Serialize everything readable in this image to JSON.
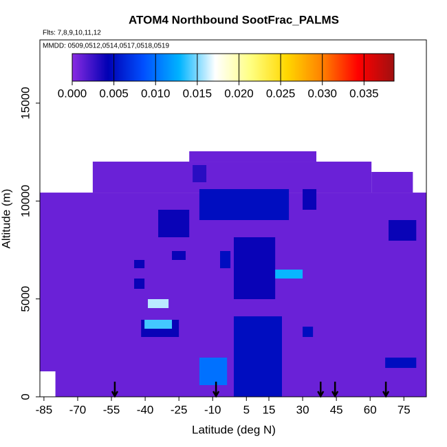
{
  "chart_data": {
    "type": "heatmap",
    "title": "ATOM4 Northbound SootFrac_PALMS",
    "flights_note": "Flts: 7,8,9,10,11,12",
    "dates_note": "MMDD: 0509,0512,0514,0517,0518,0519",
    "x_label": "Latitude (deg N)",
    "y_label": "Altitude (m)",
    "xlim": [
      -86.8,
      85
    ],
    "ylim": [
      0,
      18230
    ],
    "xticks": [
      -85,
      -70,
      -55,
      -40,
      -25,
      -10,
      5,
      15,
      30,
      45,
      60,
      75
    ],
    "yticks": [
      0,
      5000,
      10000,
      15000
    ],
    "colorbar": {
      "lim": [
        0,
        0.0386
      ],
      "ticks": [
        {
          "value": 0,
          "label": "0.000"
        },
        {
          "value": 0.005,
          "label": "0.005"
        },
        {
          "value": 0.01,
          "label": "0.010"
        },
        {
          "value": 0.015,
          "label": "0.015"
        },
        {
          "value": 0.02,
          "label": "0.020"
        },
        {
          "value": 0.025,
          "label": "0.025"
        },
        {
          "value": 0.03,
          "label": "0.030"
        },
        {
          "value": 0.035,
          "label": "0.035"
        }
      ],
      "colors": [
        "#8a2be2",
        "#0000b4",
        "#0050ff",
        "#00b4ff",
        "#ffffff",
        "#ffff80",
        "#ffd700",
        "#ff8000",
        "#ff0000",
        "#a01010"
      ]
    },
    "cells": [
      {
        "lat": [
          -86.8,
          85
        ],
        "alt": [
          1300,
          10430
        ],
        "value": 0.001
      },
      {
        "lat": [
          -79.9,
          85
        ],
        "alt": [
          0,
          1300
        ],
        "value": 0.001
      },
      {
        "lat": [
          -63.3,
          60.6
        ],
        "alt": [
          10430,
          12012
        ],
        "value": 0.001
      },
      {
        "lat": [
          -20.4,
          36.1
        ],
        "alt": [
          12012,
          12540
        ],
        "value": 0.001
      },
      {
        "lat": [
          60.6,
          79
        ],
        "alt": [
          10430,
          11486
        ],
        "value": 0.001
      },
      {
        "lat": [
          -34.2,
          -20.4
        ],
        "alt": [
          8149,
          9554
        ],
        "value": 0.004
      },
      {
        "lat": [
          -15.9,
          23.9
        ],
        "alt": [
          9027,
          10608
        ],
        "value": 0.005
      },
      {
        "lat": [
          -0.6,
          17.8
        ],
        "alt": [
          4988,
          8149
        ],
        "value": 0.004
      },
      {
        "lat": [
          -0.6,
          20.8
        ],
        "alt": [
          0,
          4110
        ],
        "value": 0.005
      },
      {
        "lat": [
          -41.8,
          -25
        ],
        "alt": [
          3056,
          3934
        ],
        "value": 0.004
      },
      {
        "lat": [
          -40.3,
          -28.1
        ],
        "alt": [
          3477,
          3934
        ],
        "value": 0.014
      },
      {
        "lat": [
          -38.8,
          -29.6
        ],
        "alt": [
          4531,
          4988
        ],
        "value": 0.016
      },
      {
        "lat": [
          -15.9,
          -3.6
        ],
        "alt": [
          597,
          2002
        ],
        "value": 0.01
      },
      {
        "lat": [
          17.8,
          30
        ],
        "alt": [
          6041,
          6498
        ],
        "value": 0.013
      },
      {
        "lat": [
          68.2,
          80.5
        ],
        "alt": [
          7973,
          9027
        ],
        "value": 0.004
      },
      {
        "lat": [
          30,
          34.6
        ],
        "alt": [
          3056,
          3583
        ],
        "value": 0.005
      },
      {
        "lat": [
          66.7,
          80.5
        ],
        "alt": [
          1475,
          2002
        ],
        "value": 0.005
      },
      {
        "lat": [
          -18.9,
          -12.8
        ],
        "alt": [
          10959,
          11837
        ],
        "value": 0.003
      },
      {
        "lat": [
          -44.9,
          -40.3
        ],
        "alt": [
          5515,
          6041
        ],
        "value": 0.004
      },
      {
        "lat": [
          -44.9,
          -40.3
        ],
        "alt": [
          6568,
          6990
        ],
        "value": 0.004
      },
      {
        "lat": [
          -6.7,
          -2.1
        ],
        "alt": [
          6568,
          7446
        ],
        "value": 0.005
      },
      {
        "lat": [
          -28.1,
          -22
        ],
        "alt": [
          6990,
          7446
        ],
        "value": 0.004
      },
      {
        "lat": [
          30,
          36.1
        ],
        "alt": [
          9554,
          10608
        ],
        "value": 0.004
      }
    ],
    "profile_lats": [
      -53.5,
      -8.5,
      38,
      44.4,
      67
    ]
  }
}
